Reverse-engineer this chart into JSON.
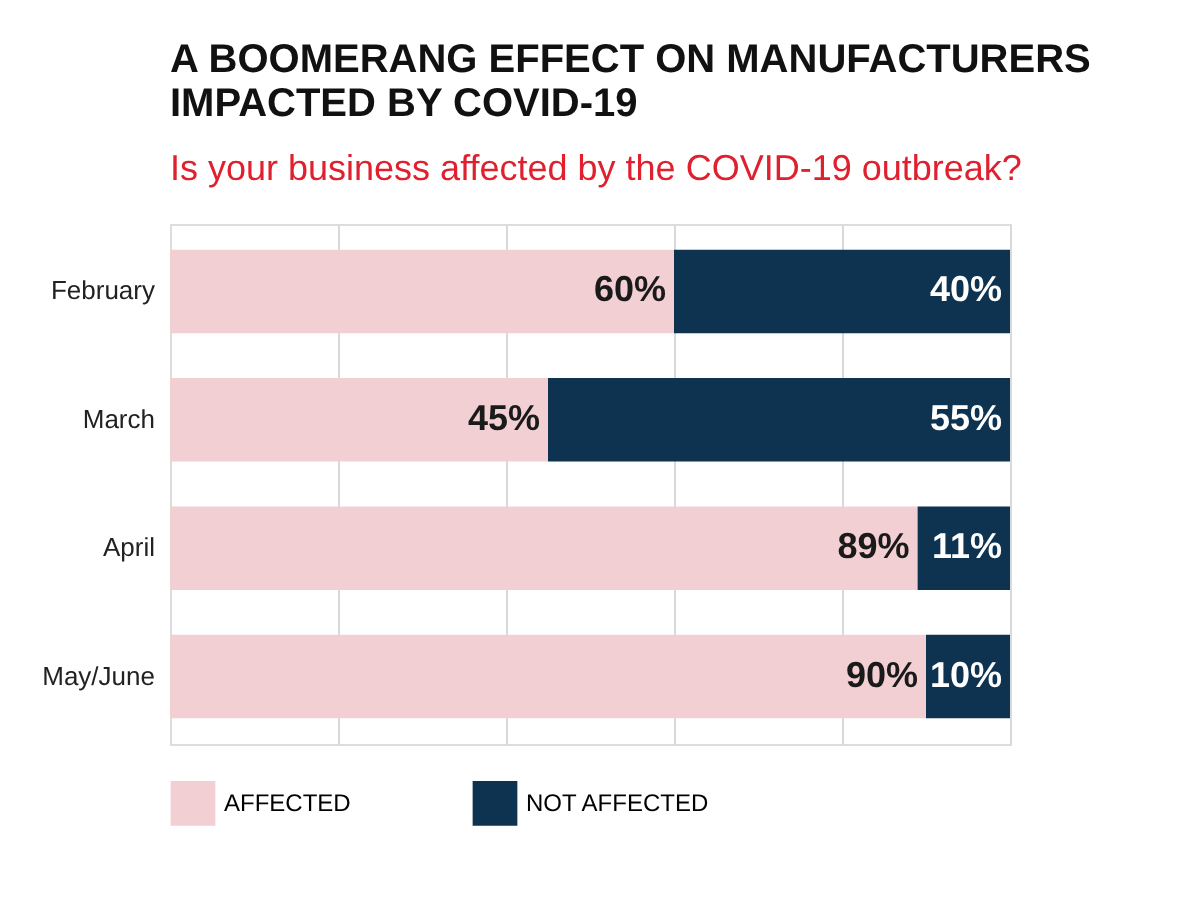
{
  "chart_data": {
    "type": "bar",
    "orientation": "horizontal",
    "stacked": true,
    "title": "A BOOMERANG EFFECT ON MANUFACTURERS IMPACTED BY COVID-19",
    "subtitle": "Is your business affected by the COVID-19 outbreak?",
    "categories": [
      "February",
      "March",
      "April",
      "May/June"
    ],
    "series": [
      {
        "name": "AFFECTED",
        "color": "#f2cfd2",
        "values": [
          60,
          45,
          89,
          90
        ],
        "value_labels": [
          "60%",
          "45%",
          "89%",
          "90%"
        ]
      },
      {
        "name": "NOT AFFECTED",
        "color": "#0e3350",
        "values": [
          40,
          55,
          11,
          10
        ],
        "value_labels": [
          "40%",
          "55%",
          "11%",
          "10%"
        ]
      }
    ],
    "xlim": [
      0,
      100
    ],
    "xticks": [
      {
        "value": 20,
        "label": null
      },
      {
        "value": 40,
        "label": null
      },
      {
        "value": 60,
        "label": null
      },
      {
        "value": 80,
        "label": null
      },
      {
        "value": 100,
        "label": null
      }
    ],
    "grid": "x",
    "tick_labels": "y",
    "legend": "bottom"
  }
}
